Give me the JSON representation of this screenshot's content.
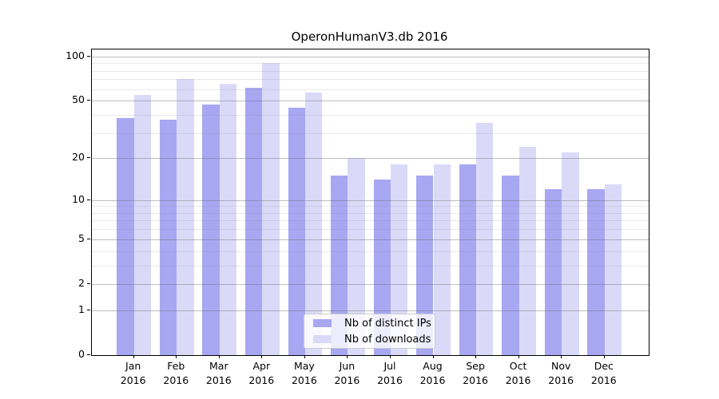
{
  "title": "OperonHumanV3.db 2016",
  "chart_data": {
    "type": "bar",
    "title": "OperonHumanV3.db 2016",
    "categories": [
      "Jan",
      "Feb",
      "Mar",
      "Apr",
      "May",
      "Jun",
      "Jul",
      "Aug",
      "Sep",
      "Oct",
      "Nov",
      "Dec"
    ],
    "category_year_label": "2016",
    "series": [
      {
        "name": "Nb of distinct IPs",
        "color": "#a7a7f2",
        "values": [
          38,
          37,
          47,
          61,
          45,
          15,
          14,
          15,
          18,
          15,
          12,
          12
        ]
      },
      {
        "name": "Nb of downloads",
        "color": "#dadaf8",
        "values": [
          55,
          70,
          65,
          90,
          57,
          20,
          18,
          18,
          35,
          24,
          22,
          13
        ]
      }
    ],
    "yscale": "log1p",
    "ylim": [
      0,
      111.4
    ],
    "y_major_ticks": [
      0,
      1,
      2,
      5,
      10,
      20,
      50,
      100
    ],
    "y_tick_labels": [
      "0",
      "1",
      "2",
      "5",
      "10",
      "20",
      "50",
      "100"
    ],
    "y_minor_gridlines": [
      3,
      4,
      6,
      7,
      8,
      9,
      30,
      40,
      60,
      70,
      80,
      90
    ],
    "grid": "on, drawn over bars",
    "legend_position": "lower center",
    "xlabel": "",
    "ylabel": ""
  },
  "legend": {
    "items": [
      {
        "label": "Nb of distinct IPs",
        "color": "#a7a7f2"
      },
      {
        "label": "Nb of downloads",
        "color": "#dadaf8"
      }
    ]
  },
  "colors": {
    "background": "#ffffff",
    "spine": "#000000",
    "major_grid": "rgba(110,110,120,0.45)",
    "minor_grid": "rgba(140,140,150,0.18)",
    "legend_border": "#cccccc"
  }
}
